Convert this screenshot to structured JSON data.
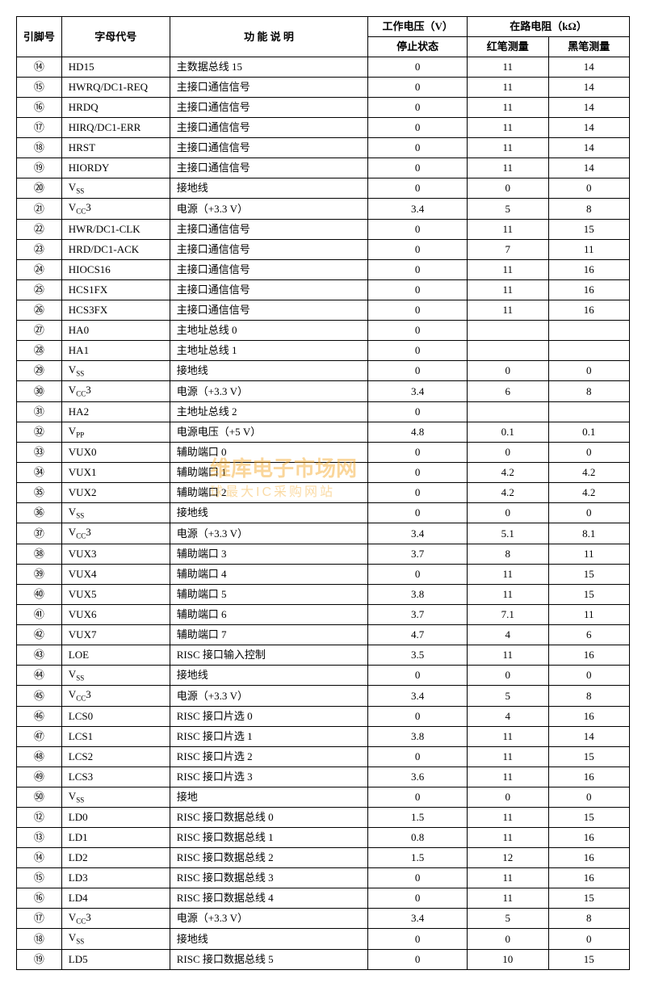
{
  "headers": {
    "pin": "引脚号",
    "code": "字母代号",
    "desc": "功 能 说 明",
    "voltage_group": "工作电压（V）",
    "resistance_group": "在路电阻（kΩ）",
    "stop_state": "停止状态",
    "red_probe": "红笔测量",
    "black_probe": "黑笔测量"
  },
  "watermark": {
    "main": "维库电子市场网",
    "sub": "球最大IC采购网站"
  },
  "rows": [
    {
      "pin": "⑭",
      "code": "HD15",
      "desc": "主数据总线 15",
      "v": "0",
      "r1": "11",
      "r2": "14"
    },
    {
      "pin": "⑮",
      "code": "HWRQ/DC1-REQ",
      "desc": "主接口通信信号",
      "v": "0",
      "r1": "11",
      "r2": "14"
    },
    {
      "pin": "⑯",
      "code": "HRDQ",
      "desc": "主接口通信信号",
      "v": "0",
      "r1": "11",
      "r2": "14"
    },
    {
      "pin": "⑰",
      "code": "HIRQ/DC1-ERR",
      "desc": "主接口通信信号",
      "v": "0",
      "r1": "11",
      "r2": "14"
    },
    {
      "pin": "⑱",
      "code": "HRST",
      "desc": "主接口通信信号",
      "v": "0",
      "r1": "11",
      "r2": "14"
    },
    {
      "pin": "⑲",
      "code": "HIORDY",
      "desc": "主接口通信信号",
      "v": "0",
      "r1": "11",
      "r2": "14"
    },
    {
      "pin": "⑳",
      "code": "V<sub>SS</sub>",
      "desc": "接地线",
      "v": "0",
      "r1": "0",
      "r2": "0"
    },
    {
      "pin": "㉑",
      "code": "V<sub>CC</sub>3",
      "desc": "电源（+3.3 V）",
      "v": "3.4",
      "r1": "5",
      "r2": "8"
    },
    {
      "pin": "㉒",
      "code": "HWR/DC1-CLK",
      "desc": "主接口通信信号",
      "v": "0",
      "r1": "11",
      "r2": "15"
    },
    {
      "pin": "㉓",
      "code": "HRD/DC1-ACK",
      "desc": "主接口通信信号",
      "v": "0",
      "r1": "7",
      "r2": "11"
    },
    {
      "pin": "㉔",
      "code": "HIOCS16",
      "desc": "主接口通信信号",
      "v": "0",
      "r1": "11",
      "r2": "16"
    },
    {
      "pin": "㉕",
      "code": "HCS1FX",
      "desc": "主接口通信信号",
      "v": "0",
      "r1": "11",
      "r2": "16"
    },
    {
      "pin": "㉖",
      "code": "HCS3FX",
      "desc": "主接口通信信号",
      "v": "0",
      "r1": "11",
      "r2": "16"
    },
    {
      "pin": "㉗",
      "code": "HA0",
      "desc": "主地址总线 0",
      "v": "0",
      "r1": "",
      "r2": ""
    },
    {
      "pin": "㉘",
      "code": "HA1",
      "desc": "主地址总线 1",
      "v": "0",
      "r1": "",
      "r2": ""
    },
    {
      "pin": "㉙",
      "code": "V<sub>SS</sub>",
      "desc": "接地线",
      "v": "0",
      "r1": "0",
      "r2": "0"
    },
    {
      "pin": "㉚",
      "code": "V<sub>CC</sub>3",
      "desc": "电源（+3.3 V）",
      "v": "3.4",
      "r1": "6",
      "r2": "8"
    },
    {
      "pin": "㉛",
      "code": "HA2",
      "desc": "主地址总线 2",
      "v": "0",
      "r1": "",
      "r2": ""
    },
    {
      "pin": "㉜",
      "code": "V<sub>PP</sub>",
      "desc": "电源电压（+5 V）",
      "v": "4.8",
      "r1": "0.1",
      "r2": "0.1"
    },
    {
      "pin": "㉝",
      "code": "VUX0",
      "desc": "辅助端口 0",
      "v": "0",
      "r1": "0",
      "r2": "0"
    },
    {
      "pin": "㉞",
      "code": "VUX1",
      "desc": "辅助端口 1",
      "v": "0",
      "r1": "4.2",
      "r2": "4.2"
    },
    {
      "pin": "㉟",
      "code": "VUX2",
      "desc": "辅助端口 2",
      "v": "0",
      "r1": "4.2",
      "r2": "4.2"
    },
    {
      "pin": "㊱",
      "code": "V<sub>SS</sub>",
      "desc": "接地线",
      "v": "0",
      "r1": "0",
      "r2": "0"
    },
    {
      "pin": "㊲",
      "code": "V<sub>CC</sub>3",
      "desc": "电源（+3.3 V）",
      "v": "3.4",
      "r1": "5.1",
      "r2": "8.1"
    },
    {
      "pin": "㊳",
      "code": "VUX3",
      "desc": "辅助端口 3",
      "v": "3.7",
      "r1": "8",
      "r2": "11"
    },
    {
      "pin": "㊴",
      "code": "VUX4",
      "desc": "辅助端口 4",
      "v": "0",
      "r1": "11",
      "r2": "15"
    },
    {
      "pin": "㊵",
      "code": "VUX5",
      "desc": "辅助端口 5",
      "v": "3.8",
      "r1": "11",
      "r2": "15"
    },
    {
      "pin": "㊶",
      "code": "VUX6",
      "desc": "辅助端口 6",
      "v": "3.7",
      "r1": "7.1",
      "r2": "11"
    },
    {
      "pin": "㊷",
      "code": "VUX7",
      "desc": "辅助端口 7",
      "v": "4.7",
      "r1": "4",
      "r2": "6"
    },
    {
      "pin": "㊸",
      "code": "LOE",
      "desc": "RISC 接口输入控制",
      "v": "3.5",
      "r1": "11",
      "r2": "16"
    },
    {
      "pin": "㊹",
      "code": "V<sub>SS</sub>",
      "desc": "接地线",
      "v": "0",
      "r1": "0",
      "r2": "0"
    },
    {
      "pin": "㊺",
      "code": "V<sub>CC</sub>3",
      "desc": "电源（+3.3 V）",
      "v": "3.4",
      "r1": "5",
      "r2": "8"
    },
    {
      "pin": "㊻",
      "code": "LCS0",
      "desc": "RISC 接口片选 0",
      "v": "0",
      "r1": "4",
      "r2": "16"
    },
    {
      "pin": "㊼",
      "code": "LCS1",
      "desc": "RISC 接口片选 1",
      "v": "3.8",
      "r1": "11",
      "r2": "14"
    },
    {
      "pin": "㊽",
      "code": "LCS2",
      "desc": "RISC 接口片选 2",
      "v": "0",
      "r1": "11",
      "r2": "15"
    },
    {
      "pin": "㊾",
      "code": "LCS3",
      "desc": "RISC 接口片选 3",
      "v": "3.6",
      "r1": "11",
      "r2": "16"
    },
    {
      "pin": "㊿",
      "code": "V<sub>SS</sub>",
      "desc": "接地",
      "v": "0",
      "r1": "0",
      "r2": "0"
    },
    {
      "pin": "⑫",
      "code": "LD0",
      "desc": "RISC 接口数据总线 0",
      "v": "1.5",
      "r1": "11",
      "r2": "15"
    },
    {
      "pin": "⑬",
      "code": "LD1",
      "desc": "RISC 接口数据总线 1",
      "v": "0.8",
      "r1": "11",
      "r2": "16"
    },
    {
      "pin": "⑭",
      "code": "LD2",
      "desc": "RISC 接口数据总线 2",
      "v": "1.5",
      "r1": "12",
      "r2": "16"
    },
    {
      "pin": "⑮",
      "code": "LD3",
      "desc": "RISC 接口数据总线 3",
      "v": "0",
      "r1": "11",
      "r2": "16"
    },
    {
      "pin": "⑯",
      "code": "LD4",
      "desc": "RISC 接口数据总线 4",
      "v": "0",
      "r1": "11",
      "r2": "15"
    },
    {
      "pin": "⑰",
      "code": "V<sub>CC</sub>3",
      "desc": "电源（+3.3 V）",
      "v": "3.4",
      "r1": "5",
      "r2": "8"
    },
    {
      "pin": "⑱",
      "code": "V<sub>SS</sub>",
      "desc": "接地线",
      "v": "0",
      "r1": "0",
      "r2": "0"
    },
    {
      "pin": "⑲",
      "code": "LD5",
      "desc": "RISC 接口数据总线 5",
      "v": "0",
      "r1": "10",
      "r2": "15"
    }
  ]
}
